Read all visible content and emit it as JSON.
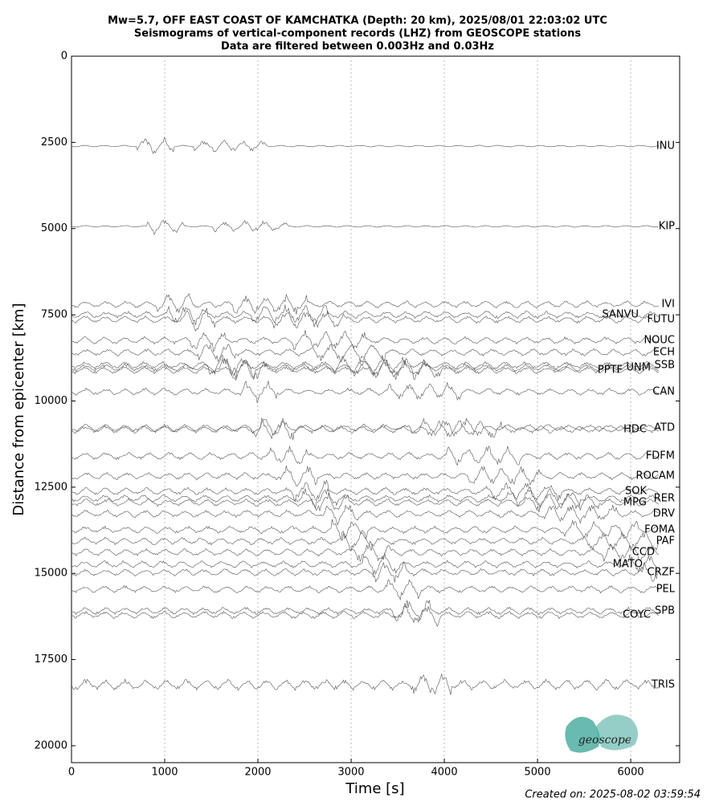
{
  "chart_data": {
    "type": "record-section",
    "title": "Mw=5.7, OFF EAST COAST OF KAMCHATKA (Depth: 20 km), 2025/08/01 22:03:02 UTC",
    "subtitle": "Seismograms of vertical-component records (LHZ) from GEOSCOPE stations",
    "subtitle2": "Data are filtered between 0.003Hz and 0.03Hz",
    "xlabel": "Time [s]",
    "ylabel": "Distance from epicenter [km]",
    "xlim": [
      0,
      6525
    ],
    "ylim": [
      0,
      20490
    ],
    "y_inverted": true,
    "xticks": [
      0,
      1000,
      2000,
      3000,
      4000,
      5000,
      6000
    ],
    "yticks": [
      0,
      2500,
      5000,
      7500,
      10000,
      12500,
      15000,
      17500,
      20000
    ],
    "grid": "x",
    "color": "#555555",
    "stations": [
      {
        "name": "INU",
        "distance": 2608
      },
      {
        "name": "KIP",
        "distance": 4936
      },
      {
        "name": "IVI",
        "distance": 7195
      },
      {
        "name": "SANVU",
        "distance": 7497
      },
      {
        "name": "FUTU",
        "distance": 7637
      },
      {
        "name": "NOUC",
        "distance": 8242
      },
      {
        "name": "ECH",
        "distance": 8591
      },
      {
        "name": "SSB",
        "distance": 8964
      },
      {
        "name": "UNM",
        "distance": 9034
      },
      {
        "name": "PPTF",
        "distance": 9104
      },
      {
        "name": "CAN",
        "distance": 9732
      },
      {
        "name": "ATD",
        "distance": 10780
      },
      {
        "name": "HDC",
        "distance": 10827
      },
      {
        "name": "FDFM",
        "distance": 11595
      },
      {
        "name": "ROCAM",
        "distance": 12177
      },
      {
        "name": "SOK",
        "distance": 12619
      },
      {
        "name": "RER",
        "distance": 12829
      },
      {
        "name": "MPG",
        "distance": 12945
      },
      {
        "name": "DRV",
        "distance": 13271
      },
      {
        "name": "FOMA",
        "distance": 13737
      },
      {
        "name": "PAF",
        "distance": 14063
      },
      {
        "name": "CCD",
        "distance": 14389
      },
      {
        "name": "MATO",
        "distance": 14738
      },
      {
        "name": "CRZF",
        "distance": 14971
      },
      {
        "name": "PEL",
        "distance": 15460
      },
      {
        "name": "SPB",
        "distance": 16088
      },
      {
        "name": "COYC",
        "distance": 16205
      },
      {
        "name": "TRIS",
        "distance": 18230
      }
    ],
    "logo_text": "geoscope",
    "footer": "Created on: 2025-08-02 03:59:54"
  }
}
